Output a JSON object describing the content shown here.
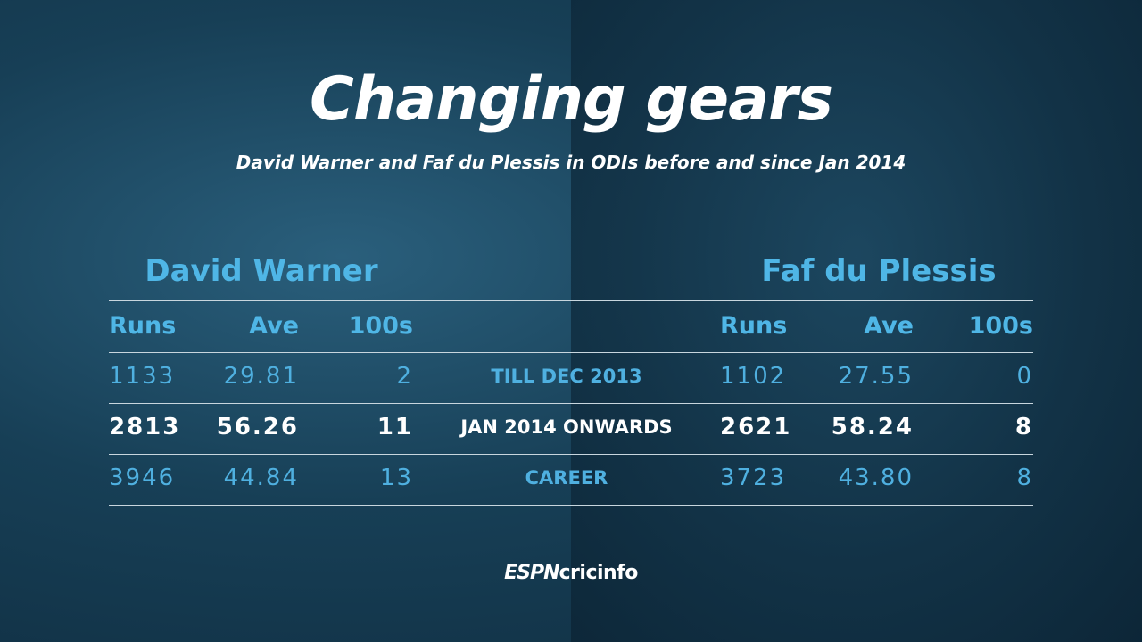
{
  "header": {
    "title": "Changing gears",
    "subtitle": "David Warner and Faf du Plessis in ODIs before and since Jan 2014"
  },
  "players": [
    {
      "name": "David Warner",
      "columns": [
        "Runs",
        "Ave",
        "100s"
      ]
    },
    {
      "name": "Faf du Plessis",
      "columns": [
        "Runs",
        "Ave",
        "100s"
      ]
    }
  ],
  "rows": [
    {
      "label": "TILL DEC 2013",
      "left": [
        "1133",
        "29.81",
        "2"
      ],
      "right": [
        "1102",
        "27.55",
        "0"
      ]
    },
    {
      "label": "JAN 2014 ONWARDS",
      "left": [
        "2813",
        "56.26",
        "11"
      ],
      "right": [
        "2621",
        "58.24",
        "8"
      ]
    },
    {
      "label": "CAREER",
      "left": [
        "3946",
        "44.84",
        "13"
      ],
      "right": [
        "3723",
        "43.80",
        "8"
      ]
    }
  ],
  "logo": {
    "brand": "ESPN",
    "site": "cricinfo"
  }
}
